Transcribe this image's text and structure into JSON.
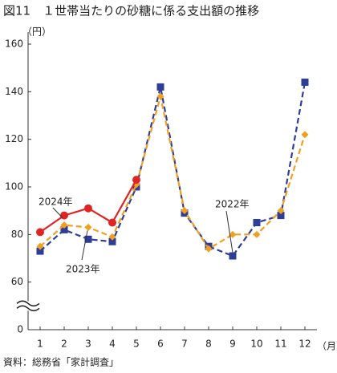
{
  "chart_data": {
    "type": "line",
    "title": "図11　１世帯当たりの砂糖に係る支出額の推移",
    "y_unit": "（円）",
    "x_unit": "（月）",
    "source": "資料：総務省「家計調査」",
    "categories": [
      "1",
      "2",
      "3",
      "4",
      "5",
      "6",
      "7",
      "8",
      "9",
      "10",
      "11",
      "12"
    ],
    "ylim": [
      0,
      160
    ],
    "yticks": [
      0,
      60,
      80,
      100,
      120,
      140,
      160
    ],
    "axis_break": [
      0,
      60
    ],
    "series": [
      {
        "name": "2022年",
        "color": "#2e3d96",
        "marker": "square",
        "dash": true,
        "values": [
          73,
          82,
          78,
          77,
          100,
          142,
          89,
          75,
          71,
          85,
          88,
          144
        ]
      },
      {
        "name": "2023年",
        "color": "#f0a020",
        "marker": "diamond",
        "dash": true,
        "values": [
          75,
          84,
          83,
          79,
          101,
          138,
          90,
          74,
          80,
          80,
          90,
          122
        ]
      },
      {
        "name": "2024年",
        "color": "#e02424",
        "marker": "circle",
        "dash": false,
        "values": [
          81,
          88,
          91,
          85,
          103,
          null,
          null,
          null,
          null,
          null,
          null,
          null
        ]
      }
    ]
  }
}
